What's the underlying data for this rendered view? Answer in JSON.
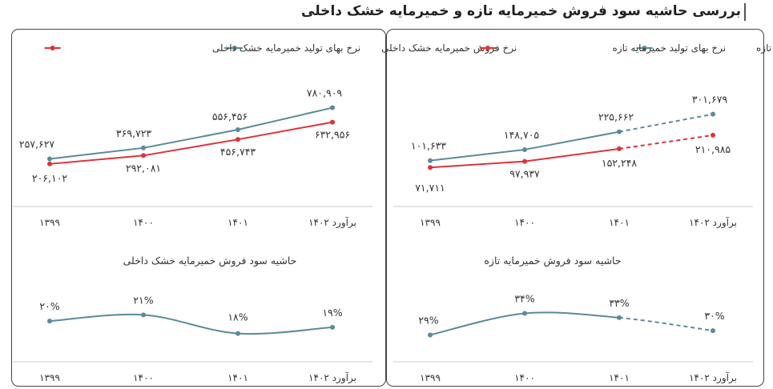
{
  "page_title": "بررسی حاشیه سود فروش خمیرمایه تازه و خمیرمایه خشک داخلی",
  "colors": {
    "blue": "#5b8a99",
    "red": "#e0313a",
    "grid": "#cccccc",
    "text": "#333333"
  },
  "chart_data": [
    {
      "id": "dry_price",
      "type": "line",
      "title": "",
      "categories": [
        "۱۳۹۹",
        "۱۴۰۰",
        "۱۴۰۱",
        "برآورد ۱۴۰۲"
      ],
      "series": [
        {
          "name": "نرخ فروش خمیرمایه خشک داخلی",
          "color": "#5b8a99",
          "values": [
            257627,
            369723,
            556456,
            780909
          ],
          "labels": [
            "۲۵۷,۶۲۷",
            "۳۶۹,۷۲۳",
            "۵۵۶,۴۵۶",
            "۷۸۰,۹۰۹"
          ]
        },
        {
          "name": "نرخ بهای تولید خمیرمایه خشک داخلی",
          "color": "#e0313a",
          "values": [
            206102,
            292081,
            456743,
            632956
          ],
          "labels": [
            "۲۰۶,۱۰۲",
            "۲۹۲,۰۸۱",
            "۴۵۶,۷۴۳",
            "۶۳۲,۹۵۶"
          ]
        }
      ],
      "ylim": [
        0,
        900000
      ],
      "legend": "top"
    },
    {
      "id": "fresh_price",
      "type": "line",
      "title": "",
      "categories": [
        "۱۳۹۹",
        "۱۴۰۰",
        "۱۴۰۱",
        "برآورد ۱۴۰۲"
      ],
      "dashed_from_index": 2,
      "series": [
        {
          "name": "نرخ فروش خمیرمایه تازه",
          "color": "#5b8a99",
          "values": [
            101633,
            148705,
            225662,
            301679
          ],
          "labels": [
            "۱۰۱,۶۳۳",
            "۱۴۸,۷۰۵",
            "۲۲۵,۶۶۲",
            "۳۰۱,۶۷۹"
          ]
        },
        {
          "name": "نرخ بهای تولید خمیرمایه تازه",
          "color": "#e0313a",
          "values": [
            71711,
            97937,
            152248,
            210985
          ],
          "labels": [
            "۷۱,۷۱۱",
            "۹۷,۹۳۷",
            "۱۵۲,۲۴۸",
            "۲۱۰,۹۸۵"
          ]
        }
      ],
      "ylim": [
        0,
        380000
      ],
      "legend": "top"
    },
    {
      "id": "dry_margin",
      "type": "line",
      "title": "حاشیه سود فروش خمیرمایه خشک داخلی",
      "categories": [
        "۱۳۹۹",
        "۱۴۰۰",
        "۱۴۰۱",
        "برآورد ۱۴۰۲"
      ],
      "series": [
        {
          "name": "حاشیه سود",
          "color": "#5b8a99",
          "values": [
            20,
            21,
            18,
            19
          ],
          "labels": [
            "۲۰%",
            "۲۱%",
            "۱۸%",
            "۱۹%"
          ]
        }
      ],
      "ylim": [
        15,
        24
      ]
    },
    {
      "id": "fresh_margin",
      "type": "line",
      "title": "حاشیه سود فروش خمیرمایه تازه",
      "categories": [
        "۱۳۹۹",
        "۱۴۰۰",
        "۱۴۰۱",
        "برآورد ۱۴۰۲"
      ],
      "dashed_from_index": 2,
      "series": [
        {
          "name": "حاشیه سود",
          "color": "#5b8a99",
          "values": [
            29,
            34,
            33,
            30
          ],
          "labels": [
            "۲۹%",
            "۳۴%",
            "۳۳%",
            "۳۰%"
          ]
        }
      ],
      "ylim": [
        25,
        38
      ]
    }
  ]
}
